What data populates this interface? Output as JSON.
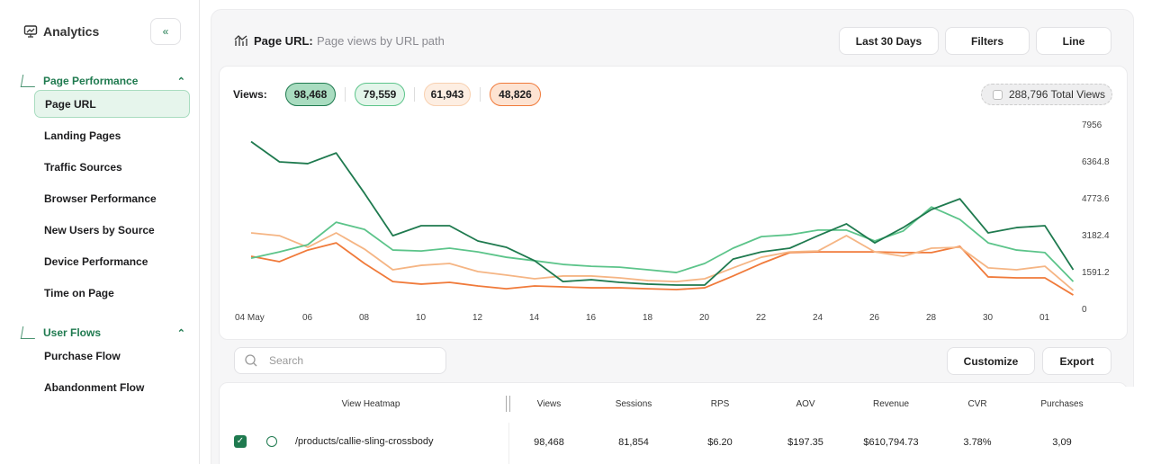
{
  "sidebar": {
    "title": "Analytics",
    "sections": [
      {
        "title": "Page Performance",
        "items": [
          "Page URL",
          "Landing Pages",
          "Traffic Sources",
          "Browser Performance",
          "New Users by Source",
          "Device Performance",
          "Time on Page"
        ]
      },
      {
        "title": "User Flows",
        "items": [
          "Purchase Flow",
          "Abandonment Flow"
        ]
      }
    ]
  },
  "header": {
    "title": "Page URL:",
    "subtitle": "Page views by URL path",
    "buttons": [
      "Last 30 Days",
      "Filters",
      "Line"
    ]
  },
  "views_label": "Views:",
  "total_views": "288,796 Total Views",
  "chart_data": {
    "type": "line",
    "categories": [
      "04 May",
      null,
      "06",
      null,
      "08",
      null,
      "10",
      null,
      "12",
      null,
      "14",
      null,
      "16",
      null,
      "18",
      null,
      "20",
      null,
      "22",
      null,
      "24",
      null,
      "26",
      null,
      "28",
      null,
      "30",
      null,
      "01",
      null
    ],
    "series": [
      {
        "name": "98,468",
        "color": "#1f7a4f",
        "values": [
          7200,
          6325,
          6250,
          6710,
          4970,
          3140,
          3570,
          3570,
          2910,
          2640,
          2060,
          1160,
          1240,
          1125,
          1050,
          1010,
          1010,
          2130,
          2440,
          2600,
          3140,
          3650,
          2830,
          3490,
          4270,
          4730,
          3260,
          3490,
          3570,
          1670
        ]
      },
      {
        "name": "79,559",
        "color": "#5cc48a",
        "values": [
          2170,
          2440,
          2750,
          3720,
          3410,
          2520,
          2480,
          2600,
          2440,
          2210,
          2060,
          1900,
          1820,
          1780,
          1670,
          1550,
          1940,
          2600,
          3100,
          3180,
          3380,
          3380,
          2910,
          3340,
          4380,
          3840,
          2830,
          2520,
          2410,
          1160
        ]
      },
      {
        "name": "61,943",
        "color": "#f5b584",
        "values": [
          3260,
          3140,
          2640,
          3260,
          2560,
          1670,
          1860,
          1940,
          1590,
          1440,
          1280,
          1400,
          1400,
          1320,
          1200,
          1160,
          1280,
          1750,
          2210,
          2440,
          2480,
          3140,
          2440,
          2250,
          2600,
          2640,
          1750,
          1670,
          1820,
          780
        ]
      },
      {
        "name": "48,826",
        "color": "#f07a3a",
        "values": [
          2250,
          2020,
          2520,
          2830,
          1940,
          1160,
          1050,
          1125,
          970,
          850,
          970,
          930,
          890,
          890,
          850,
          815,
          890,
          1400,
          1940,
          2410,
          2440,
          2440,
          2440,
          2410,
          2410,
          2680,
          1360,
          1320,
          1320,
          580
        ]
      }
    ],
    "ylim": [
      0,
      7956
    ],
    "yticks": [
      0,
      1591.2,
      3182.4,
      4773.6,
      6364.8,
      7956
    ]
  },
  "toolbar": {
    "search": "Search",
    "buttons": [
      "Customize",
      "Export"
    ]
  },
  "table": {
    "columns": [
      "View Heatmap",
      "Views",
      "Sessions",
      "RPS",
      "AOV",
      "Revenue",
      "CVR",
      "Purchases"
    ],
    "rows": [
      [
        "/products/callie-sling-crossbody",
        "98,468",
        "81,854",
        "$6.20",
        "$197.35",
        "$610,794.73",
        "3.78%",
        "3,09"
      ]
    ]
  }
}
